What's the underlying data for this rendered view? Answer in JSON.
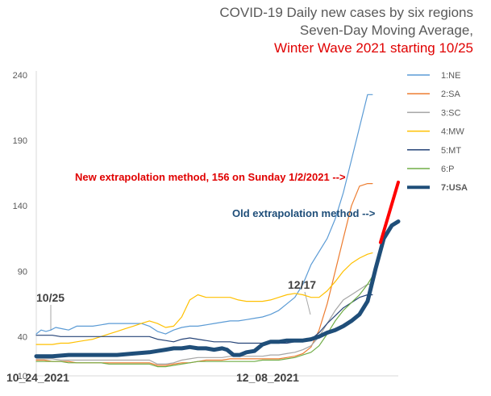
{
  "chart_data": {
    "type": "line",
    "title": [
      "COVID-19 Daily new cases by six regions",
      "Seven-Day Moving Average,",
      "Winter Wave 2021 starting 10/25"
    ],
    "ylim": [
      10,
      240
    ],
    "yticks": [
      10,
      40,
      90,
      140,
      190,
      240
    ],
    "x_start": "10_24_2021",
    "x_end": "1/2/2022",
    "x_labels": [
      "10_24_2021",
      "12_08_2021"
    ],
    "grid": false,
    "legend_position": "right",
    "series": [
      {
        "name": "1:NE",
        "color": "#5b9bd5",
        "width": 1.2,
        "points": [
          [
            0,
            42
          ],
          [
            3,
            45
          ],
          [
            6,
            44
          ],
          [
            9,
            45
          ],
          [
            12,
            47
          ],
          [
            16,
            46
          ],
          [
            20,
            45
          ],
          [
            25,
            48
          ],
          [
            30,
            48
          ],
          [
            35,
            48
          ],
          [
            40,
            49
          ],
          [
            45,
            50
          ],
          [
            50,
            50
          ],
          [
            55,
            50
          ],
          [
            60,
            50
          ],
          [
            65,
            50
          ],
          [
            70,
            48
          ],
          [
            75,
            44
          ],
          [
            80,
            42
          ],
          [
            85,
            45
          ],
          [
            90,
            47
          ],
          [
            95,
            48
          ],
          [
            100,
            48
          ],
          [
            105,
            49
          ],
          [
            110,
            50
          ],
          [
            115,
            51
          ],
          [
            120,
            52
          ],
          [
            125,
            52
          ],
          [
            130,
            53
          ],
          [
            135,
            54
          ],
          [
            140,
            55
          ],
          [
            145,
            57
          ],
          [
            150,
            60
          ],
          [
            155,
            65
          ],
          [
            160,
            70
          ],
          [
            165,
            80
          ],
          [
            170,
            95
          ],
          [
            175,
            105
          ],
          [
            180,
            115
          ],
          [
            185,
            130
          ],
          [
            190,
            150
          ],
          [
            195,
            175
          ],
          [
            200,
            200
          ],
          [
            205,
            225
          ],
          [
            208,
            225
          ]
        ]
      },
      {
        "name": "2:SA",
        "color": "#ed7d31",
        "width": 1.2,
        "points": [
          [
            0,
            22
          ],
          [
            5,
            22
          ],
          [
            10,
            21
          ],
          [
            15,
            21
          ],
          [
            20,
            21
          ],
          [
            25,
            20
          ],
          [
            30,
            20
          ],
          [
            35,
            20
          ],
          [
            40,
            20
          ],
          [
            45,
            20
          ],
          [
            50,
            20
          ],
          [
            55,
            20
          ],
          [
            60,
            20
          ],
          [
            65,
            20
          ],
          [
            70,
            20
          ],
          [
            75,
            18
          ],
          [
            80,
            18
          ],
          [
            85,
            19
          ],
          [
            90,
            20
          ],
          [
            95,
            20
          ],
          [
            100,
            21
          ],
          [
            105,
            22
          ],
          [
            110,
            22
          ],
          [
            115,
            22
          ],
          [
            120,
            23
          ],
          [
            125,
            23
          ],
          [
            130,
            23
          ],
          [
            135,
            23
          ],
          [
            140,
            23
          ],
          [
            145,
            23
          ],
          [
            150,
            23
          ],
          [
            155,
            24
          ],
          [
            160,
            25
          ],
          [
            165,
            27
          ],
          [
            170,
            32
          ],
          [
            175,
            45
          ],
          [
            180,
            65
          ],
          [
            185,
            90
          ],
          [
            190,
            115
          ],
          [
            195,
            140
          ],
          [
            200,
            155
          ],
          [
            205,
            157
          ],
          [
            208,
            157
          ]
        ]
      },
      {
        "name": "3:SC",
        "color": "#a5a5a5",
        "width": 1.2,
        "points": [
          [
            0,
            23
          ],
          [
            5,
            23
          ],
          [
            10,
            23
          ],
          [
            15,
            22
          ],
          [
            20,
            22
          ],
          [
            25,
            22
          ],
          [
            30,
            22
          ],
          [
            35,
            22
          ],
          [
            40,
            22
          ],
          [
            45,
            22
          ],
          [
            50,
            22
          ],
          [
            55,
            22
          ],
          [
            60,
            22
          ],
          [
            65,
            22
          ],
          [
            70,
            22
          ],
          [
            75,
            19
          ],
          [
            80,
            19
          ],
          [
            85,
            20
          ],
          [
            90,
            22
          ],
          [
            95,
            23
          ],
          [
            100,
            24
          ],
          [
            105,
            24
          ],
          [
            110,
            24
          ],
          [
            115,
            24
          ],
          [
            120,
            25
          ],
          [
            125,
            25
          ],
          [
            130,
            25
          ],
          [
            135,
            25
          ],
          [
            140,
            25
          ],
          [
            145,
            26
          ],
          [
            150,
            26
          ],
          [
            155,
            27
          ],
          [
            160,
            28
          ],
          [
            165,
            30
          ],
          [
            170,
            33
          ],
          [
            175,
            40
          ],
          [
            180,
            50
          ],
          [
            185,
            60
          ],
          [
            190,
            68
          ],
          [
            195,
            72
          ],
          [
            200,
            76
          ],
          [
            205,
            80
          ],
          [
            208,
            80
          ]
        ]
      },
      {
        "name": "4:MW",
        "color": "#ffc000",
        "width": 1.2,
        "points": [
          [
            0,
            34
          ],
          [
            5,
            34
          ],
          [
            10,
            34
          ],
          [
            15,
            35
          ],
          [
            20,
            35
          ],
          [
            25,
            36
          ],
          [
            30,
            37
          ],
          [
            35,
            38
          ],
          [
            40,
            40
          ],
          [
            45,
            42
          ],
          [
            50,
            44
          ],
          [
            55,
            46
          ],
          [
            60,
            48
          ],
          [
            65,
            50
          ],
          [
            70,
            52
          ],
          [
            75,
            50
          ],
          [
            80,
            47
          ],
          [
            85,
            48
          ],
          [
            90,
            55
          ],
          [
            95,
            68
          ],
          [
            100,
            72
          ],
          [
            105,
            70
          ],
          [
            110,
            70
          ],
          [
            115,
            70
          ],
          [
            120,
            70
          ],
          [
            125,
            68
          ],
          [
            130,
            67
          ],
          [
            135,
            67
          ],
          [
            140,
            67
          ],
          [
            145,
            68
          ],
          [
            150,
            70
          ],
          [
            155,
            72
          ],
          [
            160,
            73
          ],
          [
            165,
            72
          ],
          [
            170,
            70
          ],
          [
            175,
            70
          ],
          [
            180,
            75
          ],
          [
            185,
            82
          ],
          [
            190,
            90
          ],
          [
            195,
            96
          ],
          [
            200,
            100
          ],
          [
            205,
            103
          ],
          [
            208,
            104
          ]
        ]
      },
      {
        "name": "5:MT",
        "color": "#264478",
        "width": 1.2,
        "points": [
          [
            0,
            41
          ],
          [
            5,
            41
          ],
          [
            10,
            41
          ],
          [
            15,
            40
          ],
          [
            20,
            40
          ],
          [
            25,
            40
          ],
          [
            30,
            40
          ],
          [
            35,
            40
          ],
          [
            40,
            40
          ],
          [
            45,
            40
          ],
          [
            50,
            40
          ],
          [
            55,
            40
          ],
          [
            60,
            40
          ],
          [
            65,
            40
          ],
          [
            70,
            40
          ],
          [
            75,
            38
          ],
          [
            80,
            37
          ],
          [
            85,
            36
          ],
          [
            90,
            38
          ],
          [
            95,
            39
          ],
          [
            100,
            38
          ],
          [
            105,
            37
          ],
          [
            110,
            36
          ],
          [
            115,
            36
          ],
          [
            120,
            36
          ],
          [
            125,
            35
          ],
          [
            130,
            35
          ],
          [
            135,
            35
          ],
          [
            140,
            35
          ],
          [
            145,
            35
          ],
          [
            150,
            35
          ],
          [
            155,
            35
          ],
          [
            160,
            36
          ],
          [
            165,
            37
          ],
          [
            170,
            38
          ],
          [
            175,
            43
          ],
          [
            180,
            50
          ],
          [
            185,
            56
          ],
          [
            190,
            62
          ],
          [
            195,
            66
          ],
          [
            200,
            70
          ],
          [
            205,
            72
          ],
          [
            208,
            72
          ]
        ]
      },
      {
        "name": "6:P",
        "color": "#70ad47",
        "width": 1.2,
        "points": [
          [
            0,
            21
          ],
          [
            5,
            21
          ],
          [
            10,
            21
          ],
          [
            15,
            21
          ],
          [
            20,
            20
          ],
          [
            25,
            20
          ],
          [
            30,
            20
          ],
          [
            35,
            20
          ],
          [
            40,
            20
          ],
          [
            45,
            19
          ],
          [
            50,
            19
          ],
          [
            55,
            19
          ],
          [
            60,
            19
          ],
          [
            65,
            19
          ],
          [
            70,
            19
          ],
          [
            75,
            17
          ],
          [
            80,
            17
          ],
          [
            85,
            18
          ],
          [
            90,
            19
          ],
          [
            95,
            20
          ],
          [
            100,
            21
          ],
          [
            105,
            21
          ],
          [
            110,
            21
          ],
          [
            115,
            21
          ],
          [
            120,
            21
          ],
          [
            125,
            21
          ],
          [
            130,
            21
          ],
          [
            135,
            21
          ],
          [
            140,
            22
          ],
          [
            145,
            22
          ],
          [
            150,
            22
          ],
          [
            155,
            23
          ],
          [
            160,
            24
          ],
          [
            165,
            26
          ],
          [
            170,
            28
          ],
          [
            175,
            33
          ],
          [
            180,
            42
          ],
          [
            185,
            52
          ],
          [
            190,
            60
          ],
          [
            195,
            66
          ],
          [
            200,
            72
          ],
          [
            205,
            80
          ],
          [
            208,
            86
          ]
        ]
      },
      {
        "name": "7:USA",
        "color": "#1f4e79",
        "width": 5,
        "points": [
          [
            0,
            25
          ],
          [
            10,
            25
          ],
          [
            20,
            26
          ],
          [
            30,
            26
          ],
          [
            40,
            26
          ],
          [
            50,
            26
          ],
          [
            60,
            27
          ],
          [
            70,
            28
          ],
          [
            75,
            29
          ],
          [
            80,
            30
          ],
          [
            85,
            31
          ],
          [
            90,
            31
          ],
          [
            95,
            32
          ],
          [
            100,
            31
          ],
          [
            105,
            31
          ],
          [
            110,
            30
          ],
          [
            115,
            31
          ],
          [
            118,
            30
          ],
          [
            122,
            26
          ],
          [
            126,
            26
          ],
          [
            130,
            28
          ],
          [
            135,
            29
          ],
          [
            140,
            34
          ],
          [
            145,
            36
          ],
          [
            150,
            36
          ],
          [
            155,
            37
          ],
          [
            160,
            37
          ],
          [
            165,
            37
          ],
          [
            170,
            38
          ],
          [
            175,
            40
          ],
          [
            180,
            43
          ],
          [
            185,
            45
          ],
          [
            190,
            48
          ],
          [
            195,
            52
          ],
          [
            200,
            57
          ],
          [
            205,
            67
          ],
          [
            210,
            92
          ],
          [
            215,
            115
          ],
          [
            220,
            125
          ],
          [
            224,
            128
          ]
        ]
      }
    ],
    "extrapolation_line": {
      "color": "#ff0000",
      "width": 4,
      "points": [
        [
          213,
          112
        ],
        [
          224,
          158
        ]
      ]
    },
    "annotations": [
      {
        "text": "10/25",
        "color": "#404040",
        "bold": true
      },
      {
        "text": "12/17",
        "color": "#404040",
        "bold": true
      },
      {
        "text": "New extrapolation method, 156 on Sunday 1/2/2021 -->",
        "color": "#e00000",
        "bold": true
      },
      {
        "text": "Old extrapolation method -->",
        "color": "#1f4e79",
        "bold": true
      }
    ]
  }
}
